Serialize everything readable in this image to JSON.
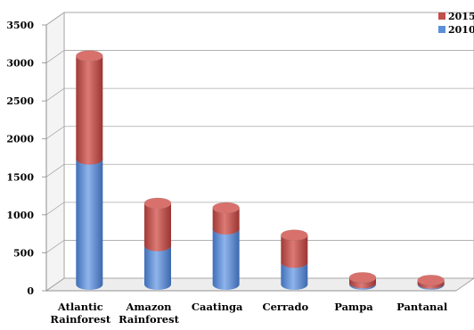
{
  "chart_data": {
    "type": "bar",
    "stacked": true,
    "style": "3d-cylinder",
    "categories": [
      [
        "Atlantic",
        "Rainforest"
      ],
      [
        "Amazon",
        "Rainforest"
      ],
      [
        "Caatinga"
      ],
      [
        "Cerrado"
      ],
      [
        "Pampa"
      ],
      [
        "Pantanal"
      ]
    ],
    "series": [
      {
        "name": "2010",
        "color": "#5b8fd9",
        "values": [
          1650,
          510,
          730,
          290,
          20,
          15
        ]
      },
      {
        "name": "2015",
        "color": "#c24f4b",
        "values": [
          1360,
          560,
          280,
          360,
          70,
          40
        ]
      }
    ],
    "ylim": [
      0,
      3500
    ],
    "yticks": [
      0,
      500,
      1000,
      1500,
      2000,
      2500,
      3000,
      3500
    ],
    "grid": true,
    "legend_position": "top-right"
  }
}
